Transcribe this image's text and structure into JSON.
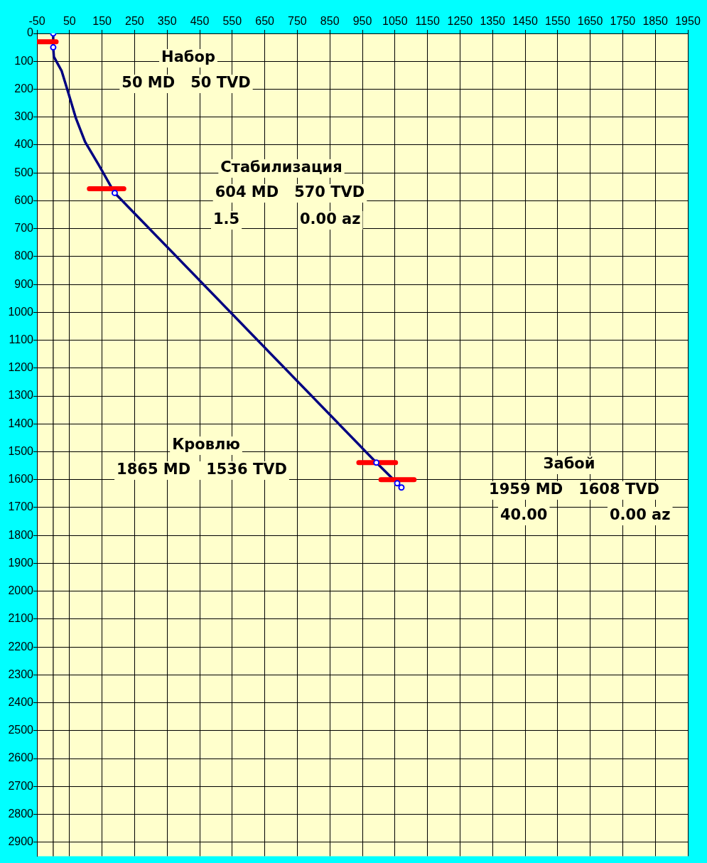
{
  "chart_data": {
    "type": "line",
    "xlim": [
      -50,
      1950
    ],
    "ylim": [
      2950,
      0
    ],
    "xticks": [
      -50,
      50,
      150,
      250,
      350,
      450,
      550,
      650,
      750,
      850,
      950,
      1050,
      1150,
      1250,
      1350,
      1450,
      1550,
      1650,
      1750,
      1850,
      1950
    ],
    "yticks": [
      0,
      100,
      200,
      300,
      400,
      500,
      600,
      700,
      800,
      900,
      1000,
      1100,
      1200,
      1300,
      1400,
      1500,
      1600,
      1700,
      1800,
      1900,
      2000,
      2100,
      2200,
      2300,
      2400,
      2500,
      2600,
      2700,
      2800,
      2900
    ],
    "grid": true,
    "legend": false,
    "series": [
      {
        "color": "#000080",
        "marker": "none",
        "x": [
          0,
          0,
          2,
          26,
          48,
          70,
          98,
          141,
          178,
          189,
          993,
          1057,
          1070
        ],
        "values": [
          0,
          50,
          84,
          135,
          219,
          305,
          389,
          474,
          550,
          572,
          1539,
          1613,
          1628
        ]
      },
      {
        "type": "line",
        "color": "#ff0000",
        "marker": "none",
        "x": [
          -50,
          9,
          null,
          111,
          217,
          null,
          939,
          1052,
          null,
          1007,
          1109
        ],
        "values": [
          30,
          30,
          null,
          557,
          557,
          null,
          1539,
          1539,
          null,
          1600,
          1600
        ]
      },
      {
        "type": "scatter",
        "color": "#0000ff",
        "marker": "circle",
        "x": [
          0,
          0,
          189,
          993,
          1057,
          1070
        ],
        "values": [
          0,
          50,
          572,
          1539,
          1613,
          1628
        ]
      }
    ],
    "ref_lines": [
      {
        "axis": "x",
        "value": 0,
        "color": "#000000"
      }
    ],
    "annotations": [
      "Набор",
      "50 MD   50 TVD",
      "Стабилизация",
      "604 MD   570 TVD",
      "1.5",
      "0.00 az",
      "Кровлю",
      "1865 MD   1536 TVD",
      "Забой",
      "1959 MD   1608 TVD",
      "40.00",
      "0.00 az"
    ]
  }
}
